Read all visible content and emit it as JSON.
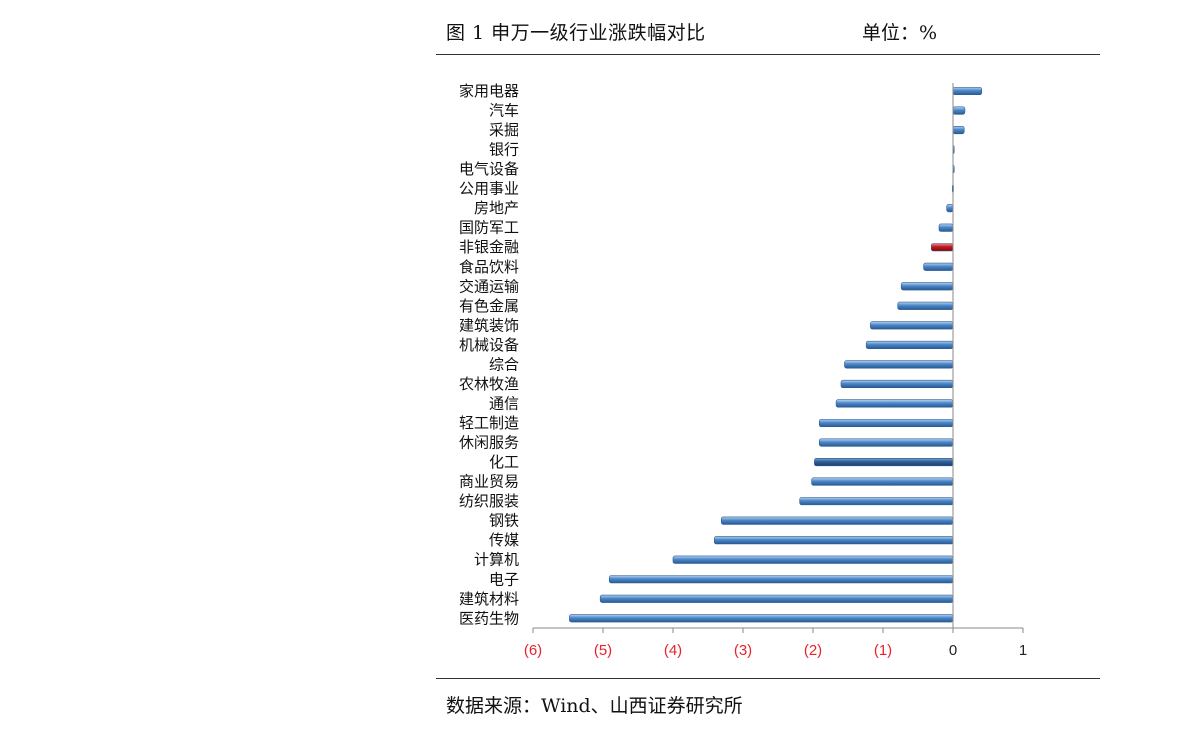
{
  "header": {
    "title": "图 1 申万一级行业涨跌幅对比",
    "unit": "单位：%"
  },
  "footer": {
    "source": "数据来源：Wind、山西证券研究所"
  },
  "colors": {
    "bar": "#4a86c8",
    "bar_highlight": "#c0171e",
    "bar_dark": "#2f5f97",
    "negative_tick": "#e8232a",
    "positive_tick": "#222222"
  },
  "chart_data": {
    "type": "bar",
    "orientation": "horizontal",
    "title": "",
    "xlabel": "",
    "ylabel": "",
    "xlim": [
      -6,
      1
    ],
    "x_ticks": [
      -6,
      -5,
      -4,
      -3,
      -2,
      -1,
      0,
      1
    ],
    "x_tick_labels": [
      "(6)",
      "(5)",
      "(4)",
      "(3)",
      "(2)",
      "(1)",
      "0",
      "1"
    ],
    "grid": false,
    "categories": [
      "家用电器",
      "汽车",
      "采掘",
      "银行",
      "电气设备",
      "公用事业",
      "房地产",
      "国防军工",
      "非银金融",
      "食品饮料",
      "交通运输",
      "有色金属",
      "建筑装饰",
      "机械设备",
      "综合",
      "农林牧渔",
      "通信",
      "轻工制造",
      "休闲服务",
      "化工",
      "商业贸易",
      "纺织服装",
      "钢铁",
      "传媒",
      "计算机",
      "电子",
      "建筑材料",
      "医药生物"
    ],
    "values": [
      0.41,
      0.17,
      0.16,
      0.01,
      0.0,
      -0.01,
      -0.09,
      -0.2,
      -0.31,
      -0.42,
      -0.74,
      -0.79,
      -1.18,
      -1.24,
      -1.55,
      -1.6,
      -1.67,
      -1.91,
      -1.91,
      -1.98,
      -2.02,
      -2.19,
      -3.31,
      -3.41,
      -4.0,
      -4.91,
      -5.04,
      -5.48
    ],
    "highlight": [
      "非银金融"
    ]
  }
}
